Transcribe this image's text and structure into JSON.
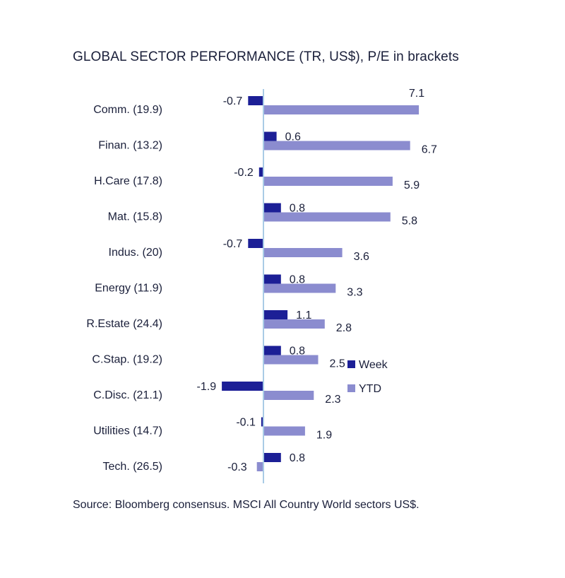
{
  "title": "GLOBAL SECTOR PERFORMANCE (TR, US$), P/E in brackets",
  "source": "Source: Bloomberg consensus. MSCI All Country World sectors US$.",
  "colors": {
    "week": "#1c1f96",
    "ytd": "#8b8ccf",
    "axis": "#a9cbe6"
  },
  "chart_data": {
    "type": "bar",
    "orientation": "horizontal",
    "categories": [
      "Comm. (19.9)",
      "Finan. (13.2)",
      "H.Care (17.8)",
      "Mat. (15.8)",
      "Indus. (20)",
      "Energy (11.9)",
      "R.Estate (24.4)",
      "C.Stap. (19.2)",
      "C.Disc. (21.1)",
      "Utilities (14.7)",
      "Tech. (26.5)"
    ],
    "series": [
      {
        "name": "Week",
        "values": [
          -0.7,
          0.6,
          -0.2,
          0.8,
          -0.7,
          0.8,
          1.1,
          0.8,
          -1.9,
          -0.1,
          0.8
        ]
      },
      {
        "name": "YTD",
        "values": [
          7.1,
          6.7,
          5.9,
          5.8,
          3.6,
          3.3,
          2.8,
          2.5,
          2.3,
          1.9,
          -0.3
        ]
      }
    ],
    "legend": [
      "Week",
      "YTD"
    ],
    "legend_position": "right",
    "grid": false,
    "xlim": [
      -2.0,
      7.5
    ]
  }
}
